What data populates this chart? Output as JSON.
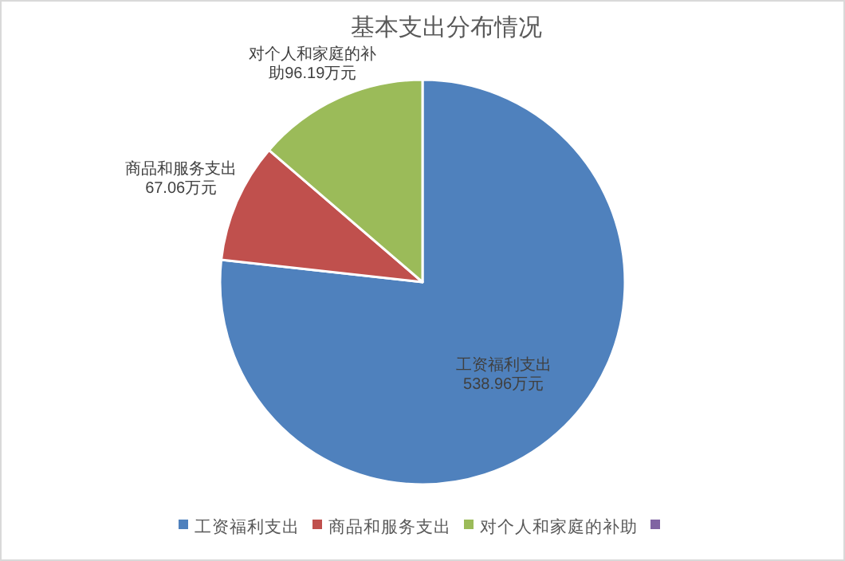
{
  "chart_data": {
    "type": "pie",
    "title": "基本支出分布情况",
    "categories": [
      "工资福利支出",
      "商品和服务支出",
      "对个人和家庭的补助",
      null
    ],
    "values": [
      538.96,
      67.06,
      96.19,
      0
    ],
    "value_labels": [
      "538.96万元",
      "67.06万元",
      "96.19万元",
      null
    ],
    "colors": [
      "#4f81bd",
      "#c0504d",
      "#9bbb59",
      "#8064a2"
    ],
    "legend": "bottom"
  }
}
